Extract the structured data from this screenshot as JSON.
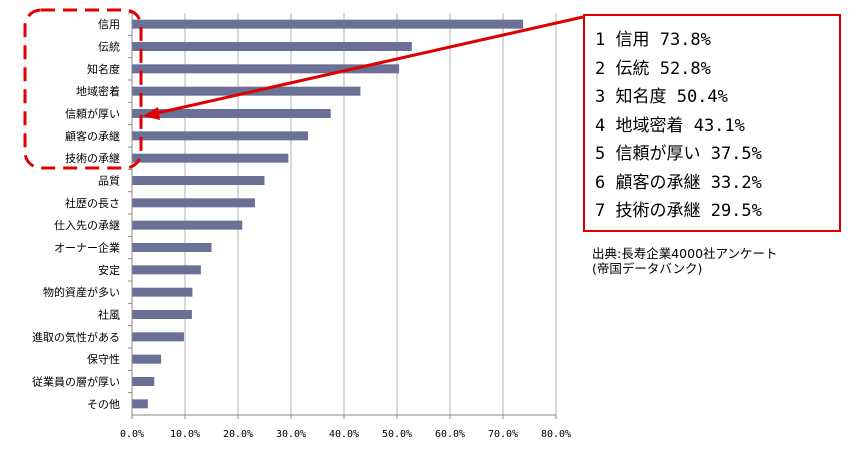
{
  "chart_data": {
    "type": "bar",
    "orientation": "horizontal",
    "categories": [
      "信用",
      "伝統",
      "知名度",
      "地域密着",
      "信頼が厚い",
      "顧客の承継",
      "技術の承継",
      "品質",
      "社歴の長さ",
      "仕入先の承継",
      "オーナー企業",
      "安定",
      "物的資産が多い",
      "社風",
      "進取の気性がある",
      "保守性",
      "従業員の層が厚い",
      "その他"
    ],
    "values": [
      73.8,
      52.8,
      50.4,
      43.1,
      37.5,
      33.2,
      29.5,
      25.0,
      23.2,
      20.8,
      15.0,
      13.0,
      11.4,
      11.3,
      9.8,
      5.5,
      4.2,
      3.0
    ],
    "x_ticks": [
      "0.0%",
      "10.0%",
      "20.0%",
      "30.0%",
      "40.0%",
      "50.0%",
      "60.0%",
      "70.0%",
      "80.0%"
    ],
    "xlim": [
      0,
      80
    ],
    "grid": "vertical",
    "bar_color": "#6b7196"
  },
  "callout": {
    "lines": [
      "1 信用 73.8%",
      "2 伝統 52.8%",
      "3 知名度 50.4%",
      "4 地域密着 43.1%",
      "5 信頼が厚い 37.5%",
      "6 顧客の承継 33.2%",
      "7 技術の承継 29.5%"
    ]
  },
  "source": {
    "line1": "出典:長寿企業4000社アンケート",
    "line2": "(帝国データバンク)"
  },
  "colors": {
    "highlight": "#e00000",
    "axis": "#888888",
    "grid": "#b0b0b0"
  }
}
